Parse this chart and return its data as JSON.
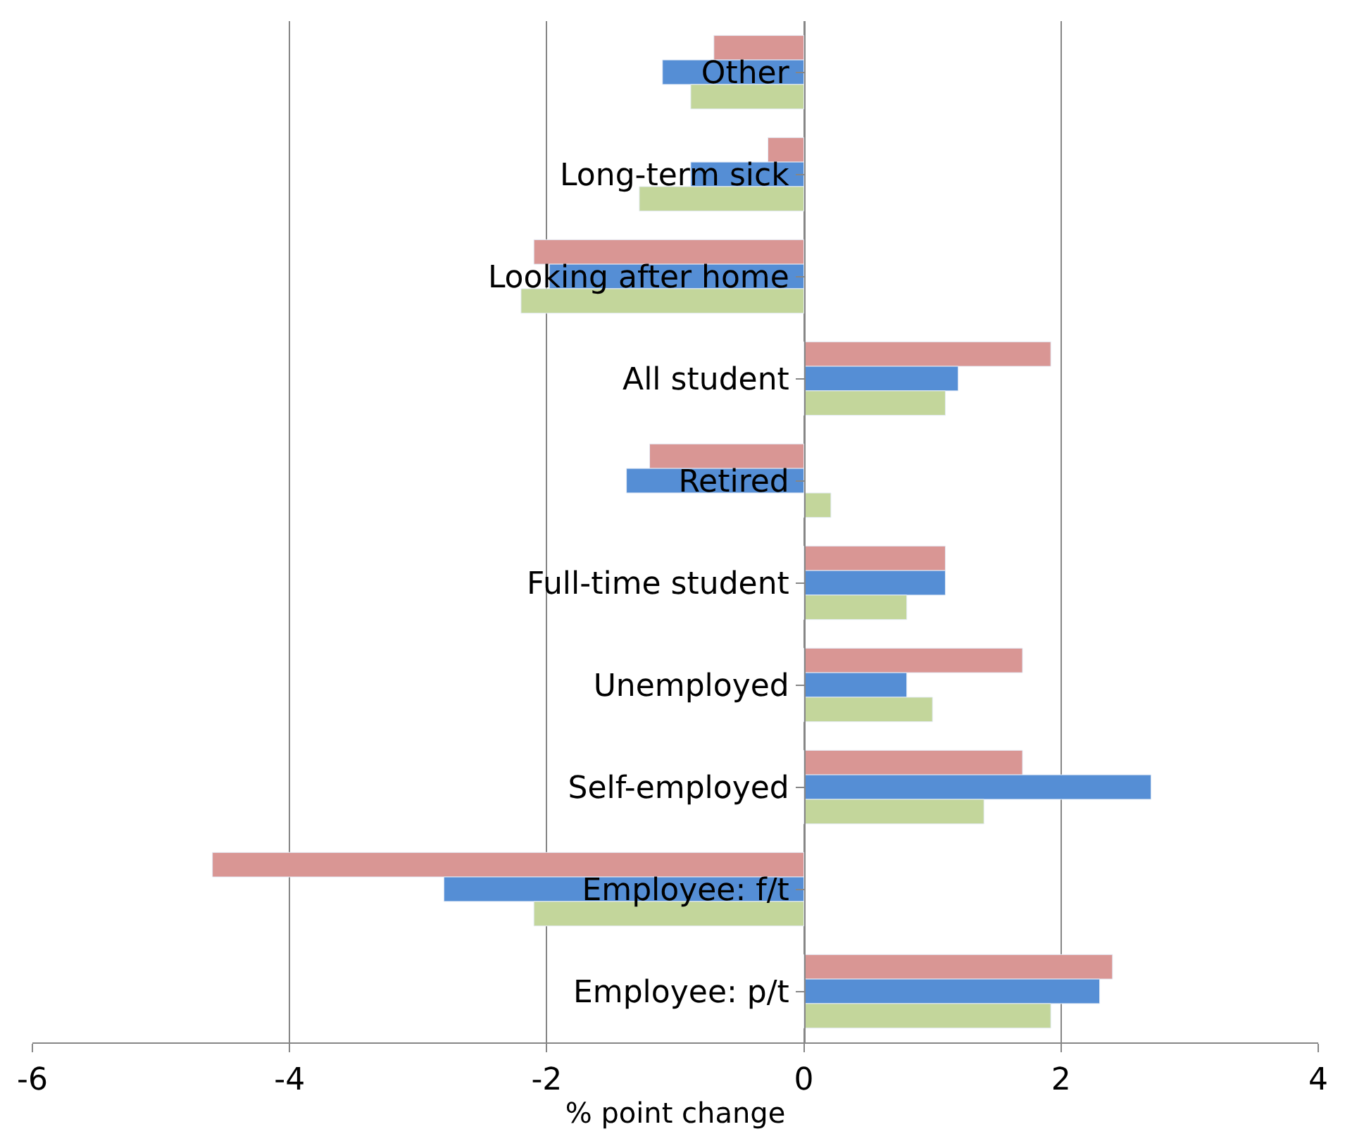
{
  "chart_data": {
    "type": "bar",
    "orientation": "horizontal",
    "xlabel": "% point change",
    "categories": [
      "Other",
      "Long-term sick",
      "Looking after home",
      "All student",
      "Retired",
      "Full-time student",
      "Unemployed",
      "Self-employed",
      "Employee: f/t",
      "Employee: p/t"
    ],
    "series": [
      {
        "color": "#d99694",
        "values": [
          -0.7,
          -0.28,
          -2.1,
          1.92,
          -1.2,
          1.1,
          1.7,
          1.7,
          -4.6,
          2.4
        ]
      },
      {
        "color": "#558ed5",
        "values": [
          -1.1,
          -0.88,
          -1.98,
          1.2,
          -1.38,
          1.1,
          0.8,
          2.7,
          -2.8,
          2.3
        ]
      },
      {
        "color": "#c3d69b",
        "values": [
          -0.88,
          -1.28,
          -2.2,
          1.1,
          0.21,
          0.8,
          1.0,
          1.4,
          -2.1,
          1.92
        ]
      }
    ],
    "xlim": [
      -6,
      4
    ],
    "xticks": [
      -6,
      -4,
      -2,
      0,
      2,
      4
    ],
    "grid": "x"
  }
}
